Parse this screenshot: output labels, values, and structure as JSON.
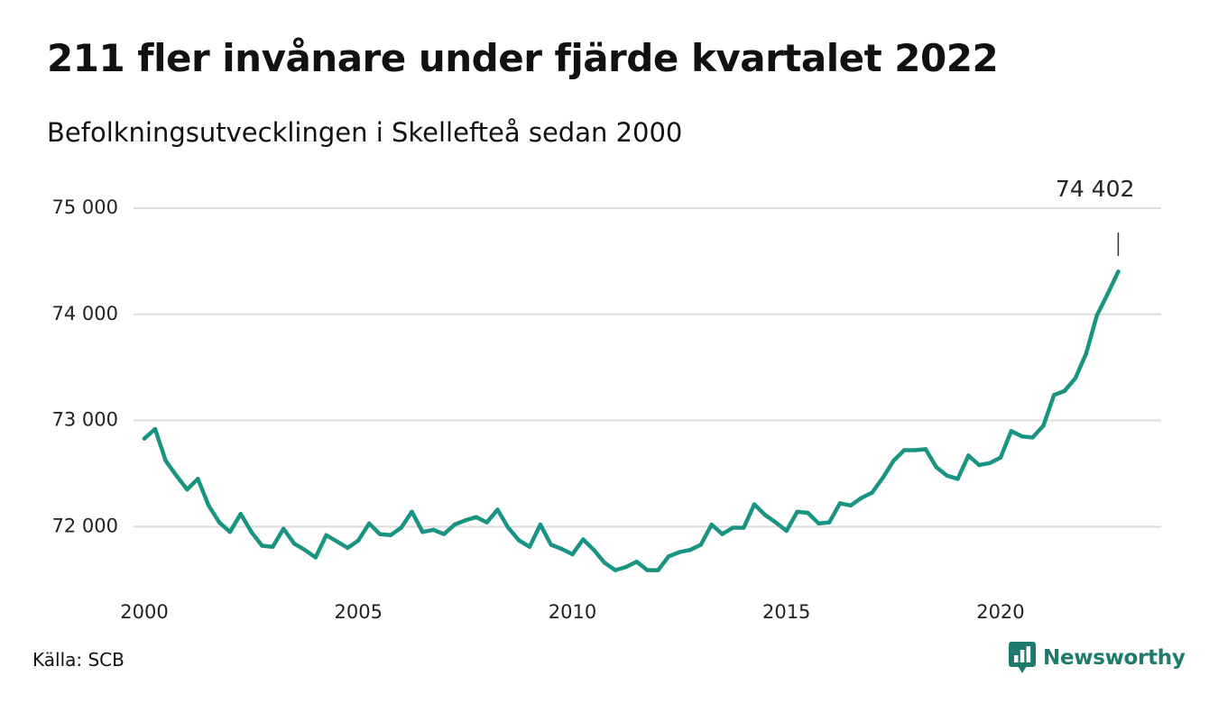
{
  "header": {
    "title": "211 fler invånare under fjärde kvartalet 2022",
    "subtitle": "Befolkningsutvecklingen i Skellefteå sedan 2000"
  },
  "footer": {
    "source": "Källa: SCB",
    "brand_name": "Newsworthy",
    "brand_color": "#1f7a6e",
    "brand_icon": "bar-chart-speech-bubble-icon"
  },
  "chart_data": {
    "type": "line",
    "title": "211 fler invånare under fjärde kvartalet 2022",
    "subtitle": "Befolkningsutvecklingen i Skellefteå sedan 2000",
    "series": [
      {
        "color": "#1a9482",
        "x": [
          2000,
          2000.25,
          2000.5,
          2000.75,
          2001,
          2001.25,
          2001.5,
          2001.75,
          2002,
          2002.25,
          2002.5,
          2002.75,
          2003,
          2003.25,
          2003.5,
          2003.75,
          2004,
          2004.25,
          2004.5,
          2004.75,
          2005,
          2005.25,
          2005.5,
          2005.75,
          2006,
          2006.25,
          2006.5,
          2006.75,
          2007,
          2007.25,
          2007.5,
          2007.75,
          2008,
          2008.25,
          2008.5,
          2008.75,
          2009,
          2009.25,
          2009.5,
          2009.75,
          2010,
          2010.25,
          2010.5,
          2010.75,
          2011,
          2011.25,
          2011.5,
          2011.75,
          2012,
          2012.25,
          2012.5,
          2012.75,
          2013,
          2013.25,
          2013.5,
          2013.75,
          2014,
          2014.25,
          2014.5,
          2014.75,
          2015,
          2015.25,
          2015.5,
          2015.75,
          2016,
          2016.25,
          2016.5,
          2016.75,
          2017,
          2017.25,
          2017.5,
          2017.75,
          2018,
          2018.25,
          2018.5,
          2018.75,
          2019,
          2019.25,
          2019.5,
          2019.75,
          2020,
          2020.25,
          2020.5,
          2020.75,
          2021,
          2021.25,
          2021.5,
          2021.75,
          2022,
          2022.25,
          2022.5,
          2022.75
        ],
        "values": [
          72830,
          72920,
          72620,
          72480,
          72350,
          72450,
          72200,
          72040,
          71950,
          72120,
          71950,
          71820,
          71810,
          71980,
          71840,
          71780,
          71710,
          71920,
          71860,
          71800,
          71870,
          72030,
          71930,
          71920,
          71990,
          72140,
          71950,
          71970,
          71930,
          72020,
          72060,
          72090,
          72040,
          72160,
          71990,
          71870,
          71810,
          72020,
          71830,
          71790,
          71740,
          71880,
          71780,
          71660,
          71590,
          71620,
          71670,
          71590,
          71590,
          71720,
          71760,
          71780,
          71830,
          72020,
          71930,
          71990,
          71990,
          72210,
          72110,
          72040,
          71960,
          72140,
          72130,
          72030,
          72040,
          72220,
          72200,
          72270,
          72320,
          72460,
          72620,
          72720,
          72720,
          72730,
          72560,
          72480,
          72450,
          72670,
          72580,
          72600,
          72650,
          72900,
          72850,
          72840,
          72950,
          73240,
          73280,
          73400,
          73630,
          73990,
          74191,
          74402
        ]
      }
    ],
    "annotations": [
      {
        "x": 2022.75,
        "value": 74402,
        "label": "74 402"
      }
    ],
    "xticks": [
      2000,
      2005,
      2010,
      2015,
      2020
    ],
    "xtick_labels": [
      "2000",
      "2005",
      "2010",
      "2015",
      "2020"
    ],
    "yticks": [
      72000,
      73000,
      74000,
      75000
    ],
    "ytick_labels": [
      "72 000",
      "73 000",
      "74 000",
      "75 000"
    ],
    "xlim": [
      2000,
      2023.5
    ],
    "ylim": [
      71400,
      75000
    ],
    "xlabel": "",
    "ylabel": "",
    "grid": "horizontal",
    "line_color": "#1a9482",
    "grid_color": "#dcdcdc"
  }
}
